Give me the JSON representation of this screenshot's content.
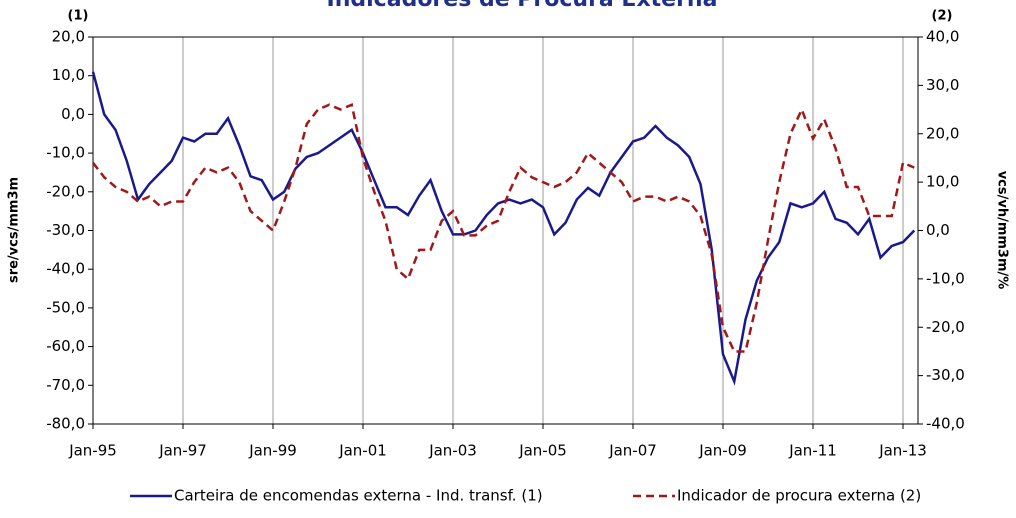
{
  "chart_data": {
    "type": "line",
    "title": "Indicadores de Procura Externa",
    "y_label": "sre/vcs/mm3m",
    "y2_label": "vcs/vh/mm3m/%",
    "y_note": "(1)",
    "y2_note": "(2)",
    "categories": [
      "Jan-95",
      null,
      null,
      null,
      null,
      null,
      null,
      null,
      "Jan-97",
      null,
      null,
      null,
      null,
      null,
      null,
      null,
      "Jan-99",
      null,
      null,
      null,
      null,
      null,
      null,
      null,
      "Jan-01",
      null,
      null,
      null,
      null,
      null,
      null,
      null,
      "Jan-03",
      null,
      null,
      null,
      null,
      null,
      null,
      null,
      "Jan-05",
      null,
      null,
      null,
      null,
      null,
      null,
      null,
      "Jan-07",
      null,
      null,
      null,
      null,
      null,
      null,
      null,
      "Jan-09",
      null,
      null,
      null,
      null,
      null,
      null,
      null,
      "Jan-11",
      null,
      null,
      null,
      null,
      null,
      null,
      null,
      "Jan-13",
      null
    ],
    "series": [
      {
        "name": "Carteira de encomendas externa - Ind. transf. (1)",
        "color": "#1a1a8c",
        "dash": false,
        "values": [
          11,
          0,
          -4,
          -12,
          -22,
          -18,
          -15,
          -12,
          -6,
          -7,
          -5,
          -5,
          -1,
          -8,
          -16,
          -17,
          -22,
          -20,
          -14,
          -11,
          -10,
          -8,
          -6,
          -4,
          -10,
          -17,
          -24,
          -24,
          -26,
          -21,
          -17,
          -25,
          -31,
          -31,
          -30,
          -26,
          -23,
          -22,
          -23,
          -22,
          -24,
          -31,
          -28,
          -22,
          -19,
          -21,
          -15,
          -11,
          -7,
          -6,
          -3,
          -6,
          -8,
          -11,
          -18,
          -35,
          -62,
          -69,
          -53,
          -43,
          -37,
          -33,
          -23,
          -24,
          -23,
          -20,
          -27,
          -28,
          -31,
          -27,
          -37,
          -34,
          -33,
          -30
        ]
      },
      {
        "name": "Indicador de procura externa (2)",
        "color": "#a01818",
        "dash": true,
        "axis": "y2",
        "values": [
          14,
          11,
          9,
          8,
          6,
          7,
          5,
          6,
          6,
          10,
          13,
          12,
          13,
          10,
          4,
          2,
          0,
          6,
          13,
          22,
          25,
          26,
          25,
          26,
          15,
          8,
          2,
          -8,
          -10,
          -4,
          -4,
          2,
          4,
          -1,
          -1,
          1,
          2,
          8,
          13,
          11,
          10,
          9,
          10,
          12,
          16,
          14,
          12,
          10,
          6,
          7,
          7,
          6,
          7,
          6,
          3,
          -5,
          -20,
          -25,
          -25,
          -15,
          -2,
          10,
          20,
          25,
          19,
          23,
          17,
          9,
          9,
          3,
          3,
          3,
          14,
          13
        ]
      }
    ],
    "ylim": [
      -80,
      20
    ],
    "yticks": [
      {
        "value": -80,
        "label": "-80,0"
      },
      {
        "value": -70,
        "label": "-70,0"
      },
      {
        "value": -60,
        "label": "-60,0"
      },
      {
        "value": -50,
        "label": "-50,0"
      },
      {
        "value": -40,
        "label": "-40,0"
      },
      {
        "value": -30,
        "label": "-30,0"
      },
      {
        "value": -20,
        "label": "-20,0"
      },
      {
        "value": -10,
        "label": "-10,0"
      },
      {
        "value": 0,
        "label": "0,0"
      },
      {
        "value": 10,
        "label": "10,0"
      },
      {
        "value": 20,
        "label": "20,0"
      }
    ],
    "y2lim": [
      -40,
      40
    ],
    "y2ticks": [
      {
        "value": -40,
        "label": "-40,0"
      },
      {
        "value": -30,
        "label": "-30,0"
      },
      {
        "value": -20,
        "label": "-20,0"
      },
      {
        "value": -10,
        "label": "-10,0"
      },
      {
        "value": 0,
        "label": "0,0"
      },
      {
        "value": 10,
        "label": "10,0"
      },
      {
        "value": 20,
        "label": "20,0"
      },
      {
        "value": 30,
        "label": "30,0"
      },
      {
        "value": 40,
        "label": "40,0"
      }
    ],
    "grid": true,
    "legend": "bottom"
  }
}
